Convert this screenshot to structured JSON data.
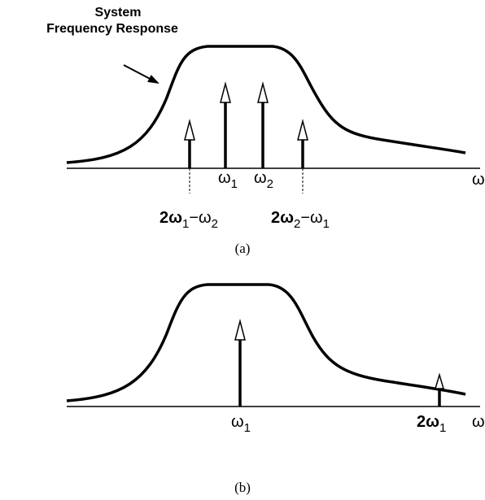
{
  "title": [
    "System",
    "Frequency Response"
  ],
  "panel_a": {
    "caption": "(a)",
    "axis_label": "ω",
    "labels": [
      {
        "parts": [
          "ω",
          "1"
        ]
      },
      {
        "parts": [
          "ω",
          "2"
        ]
      },
      {
        "parts": [
          "2ω",
          "1",
          "−ω",
          "2"
        ]
      },
      {
        "parts": [
          "2ω",
          "2",
          "−ω",
          "1"
        ]
      }
    ]
  },
  "panel_b": {
    "caption": "(b)",
    "axis_label": "ω",
    "labels": [
      {
        "parts": [
          "ω",
          "1"
        ]
      },
      {
        "parts": [
          "2ω",
          "1"
        ]
      }
    ]
  }
}
